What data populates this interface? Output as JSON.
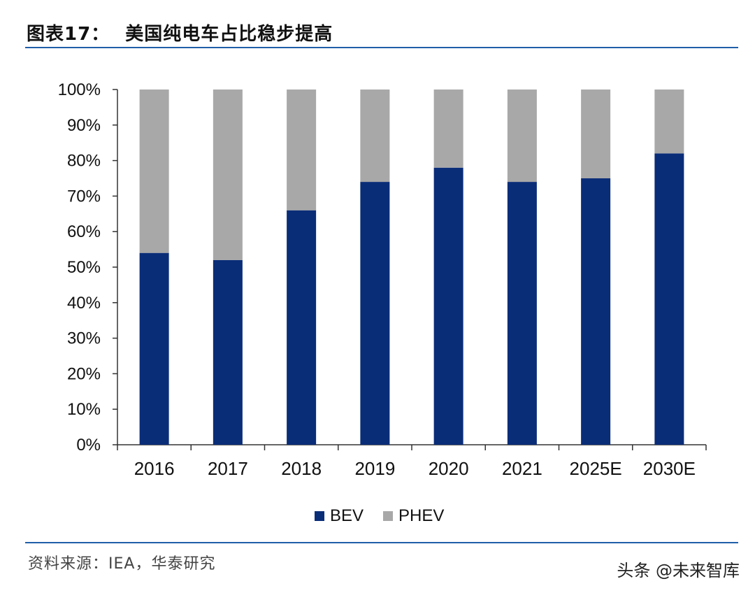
{
  "header": {
    "figure_number": "图表17：",
    "title": "美国纯电车占比稳步提高"
  },
  "footer": {
    "source": "资料来源：IEA，华泰研究",
    "watermark": "头条 @未来智库"
  },
  "colors": {
    "bev": "#0a2d78",
    "phev": "#a8a8a8",
    "rule": "#1f5fa8"
  },
  "chart_data": {
    "type": "bar",
    "stacked": true,
    "categories": [
      "2016",
      "2017",
      "2018",
      "2019",
      "2020",
      "2021",
      "2025E",
      "2030E"
    ],
    "series": [
      {
        "name": "BEV",
        "values": [
          54,
          52,
          66,
          74,
          78,
          74,
          75,
          82
        ]
      },
      {
        "name": "PHEV",
        "values": [
          46,
          48,
          34,
          26,
          22,
          26,
          25,
          18
        ]
      }
    ],
    "ylim": [
      0,
      100
    ],
    "yticks": [
      "0%",
      "10%",
      "20%",
      "30%",
      "40%",
      "50%",
      "60%",
      "70%",
      "80%",
      "90%",
      "100%"
    ],
    "legend_position": "bottom",
    "grid": false
  }
}
